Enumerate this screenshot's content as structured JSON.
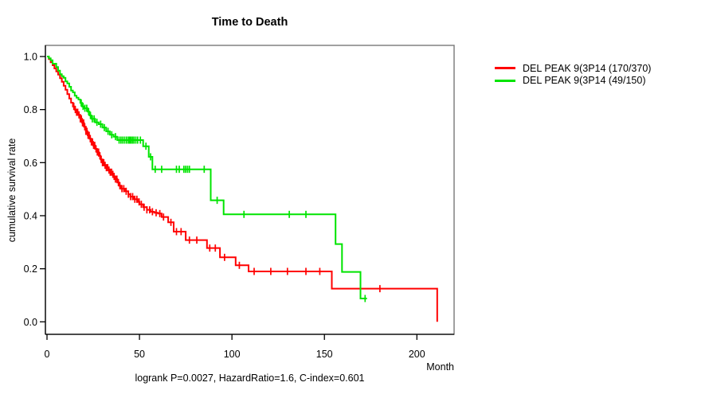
{
  "chart_data": {
    "type": "line",
    "subtype": "kaplan-meier-step-curves",
    "title": "Time to Death",
    "xlabel": "Month",
    "ylabel": "cumulative survival rate",
    "footnote": "logrank P=0.0027, HazardRatio=1.6, C-index=0.601",
    "xlim": [
      0,
      220
    ],
    "ylim": [
      0.0,
      1.0
    ],
    "x_ticks": [
      0,
      50,
      100,
      150,
      200
    ],
    "y_ticks": [
      "0.0",
      "0.2",
      "0.4",
      "0.6",
      "0.8",
      "1.0"
    ],
    "grid": false,
    "legend_position": "right-outside",
    "axis_color": "#000000",
    "box_color": "#777777",
    "series": [
      {
        "name": "DEL PEAK 9(3P14 (170/370)",
        "color": "#ff0000",
        "steps": [
          [
            0,
            1.0
          ],
          [
            1,
            0.99
          ],
          [
            2,
            0.978
          ],
          [
            3,
            0.967
          ],
          [
            4,
            0.955
          ],
          [
            5,
            0.944
          ],
          [
            6,
            0.932
          ],
          [
            7,
            0.918
          ],
          [
            8,
            0.905
          ],
          [
            9,
            0.89
          ],
          [
            10,
            0.875
          ],
          [
            11,
            0.858
          ],
          [
            12,
            0.842
          ],
          [
            13,
            0.826
          ],
          [
            14,
            0.812
          ],
          [
            15,
            0.8
          ],
          [
            16,
            0.79
          ],
          [
            17,
            0.78
          ],
          [
            18,
            0.765
          ],
          [
            19,
            0.75
          ],
          [
            20,
            0.735
          ],
          [
            21,
            0.718
          ],
          [
            22,
            0.703
          ],
          [
            23,
            0.69
          ],
          [
            24,
            0.678
          ],
          [
            25,
            0.665
          ],
          [
            26,
            0.652
          ],
          [
            27,
            0.64
          ],
          [
            28,
            0.626
          ],
          [
            29,
            0.612
          ],
          [
            30,
            0.6
          ],
          [
            31,
            0.59
          ],
          [
            32,
            0.581
          ],
          [
            33,
            0.572
          ],
          [
            34,
            0.564
          ],
          [
            35,
            0.556
          ],
          [
            36,
            0.548
          ],
          [
            37,
            0.538
          ],
          [
            38,
            0.525
          ],
          [
            39,
            0.513
          ],
          [
            40,
            0.502
          ],
          [
            42,
            0.492
          ],
          [
            44,
            0.481
          ],
          [
            45,
            0.472
          ],
          [
            47,
            0.462
          ],
          [
            49,
            0.452
          ],
          [
            50,
            0.443
          ],
          [
            52,
            0.432
          ],
          [
            54,
            0.422
          ],
          [
            56,
            0.415
          ],
          [
            58,
            0.411
          ],
          [
            60,
            0.408
          ],
          [
            62,
            0.395
          ],
          [
            65.5,
            0.375
          ],
          [
            68.5,
            0.34
          ],
          [
            75,
            0.308
          ],
          [
            86.5,
            0.278
          ],
          [
            93.5,
            0.243
          ],
          [
            102,
            0.213
          ],
          [
            109,
            0.19
          ],
          [
            154,
            0.125
          ],
          [
            211,
            0.0
          ]
        ],
        "censor_marks": [
          14.5,
          15.3,
          16,
          16.6,
          17.3,
          18,
          18.6,
          19.2,
          19.8,
          20.4,
          21,
          21.6,
          22.2,
          22.8,
          23.4,
          24,
          24.6,
          25.2,
          25.8,
          26.5,
          27.2,
          27.9,
          28.6,
          29.3,
          30,
          30.7,
          31.4,
          32.1,
          32.8,
          33.5,
          34.2,
          34.9,
          35.6,
          36.3,
          37,
          37.8,
          38.6,
          39.4,
          40.5,
          41.5,
          42.8,
          44,
          45.2,
          46.3,
          47.5,
          48.6,
          49.8,
          51,
          52.5,
          54,
          55.5,
          57,
          59,
          61,
          63,
          67,
          70,
          72.5,
          77,
          81,
          88,
          91,
          96,
          104,
          112,
          121,
          130,
          140,
          147.5,
          180
        ]
      },
      {
        "name": "DEL PEAK 9(3P14 (49/150)",
        "color": "#00e400",
        "steps": [
          [
            0,
            1.0
          ],
          [
            1,
            0.993
          ],
          [
            2,
            0.986
          ],
          [
            3,
            0.973
          ],
          [
            5,
            0.96
          ],
          [
            6,
            0.947
          ],
          [
            7,
            0.933
          ],
          [
            8,
            0.926
          ],
          [
            9,
            0.92
          ],
          [
            10,
            0.906
          ],
          [
            11,
            0.899
          ],
          [
            12,
            0.886
          ],
          [
            13,
            0.872
          ],
          [
            14,
            0.865
          ],
          [
            15,
            0.852
          ],
          [
            16,
            0.845
          ],
          [
            17,
            0.838
          ],
          [
            18,
            0.825
          ],
          [
            19,
            0.812
          ],
          [
            20,
            0.805
          ],
          [
            22,
            0.792
          ],
          [
            23,
            0.778
          ],
          [
            24,
            0.765
          ],
          [
            26,
            0.752
          ],
          [
            28,
            0.745
          ],
          [
            30,
            0.732
          ],
          [
            32,
            0.718
          ],
          [
            34,
            0.705
          ],
          [
            36,
            0.698
          ],
          [
            38,
            0.685
          ],
          [
            52,
            0.662
          ],
          [
            55,
            0.622
          ],
          [
            57,
            0.575
          ],
          [
            88.5,
            0.458
          ],
          [
            95.5,
            0.405
          ],
          [
            156,
            0.293
          ],
          [
            159.5,
            0.188
          ],
          [
            169.5,
            0.088
          ],
          [
            173,
            0.088
          ]
        ],
        "censor_marks": [
          18.5,
          19.5,
          20.5,
          21.5,
          22.5,
          23.5,
          24.5,
          25.5,
          27,
          29,
          31,
          33,
          35,
          37,
          39,
          40,
          41,
          42,
          43,
          44,
          44.7,
          45.4,
          46.2,
          47,
          48,
          49,
          50.5,
          53.5,
          56,
          58.5,
          62,
          70,
          71.5,
          74,
          75,
          76,
          77,
          85,
          92,
          106.5,
          131,
          140,
          172
        ]
      }
    ]
  }
}
